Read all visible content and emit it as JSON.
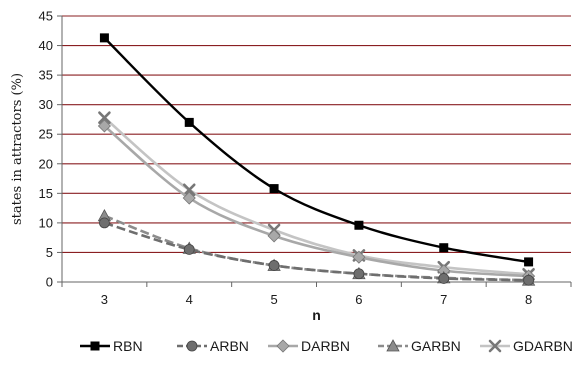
{
  "chart_data": {
    "type": "line",
    "title": "",
    "xlabel": "n",
    "ylabel": "states in attractors (%)",
    "x": [
      3,
      4,
      5,
      6,
      7,
      8
    ],
    "x_tick_labels": [
      "3",
      "4",
      "5",
      "6",
      "7",
      "8"
    ],
    "ylim": [
      0,
      45
    ],
    "y_ticks": [
      0,
      5,
      10,
      15,
      20,
      25,
      30,
      35,
      40,
      45
    ],
    "y_tick_labels": [
      "0",
      "5",
      "10",
      "15",
      "20",
      "25",
      "30",
      "35",
      "40",
      "45"
    ],
    "grid": "horizontal",
    "legend_position": "bottom",
    "series": [
      {
        "name": "RBN",
        "values": [
          41.3,
          27.0,
          15.8,
          9.6,
          5.8,
          3.4
        ],
        "color": "#000000",
        "marker": "square",
        "dash": "solid"
      },
      {
        "name": "ARBN",
        "values": [
          10.0,
          5.5,
          2.8,
          1.4,
          0.6,
          0.3
        ],
        "color": "#6e6e6e",
        "marker": "circle",
        "dash": "dashed"
      },
      {
        "name": "DARBN",
        "values": [
          26.4,
          14.2,
          7.8,
          4.2,
          1.9,
          1.0
        ],
        "color": "#a8a8a8",
        "marker": "diamond",
        "dash": "solid"
      },
      {
        "name": "GARBN",
        "values": [
          11.2,
          5.7,
          2.8,
          1.4,
          0.7,
          0.3
        ],
        "color": "#8c8c8c",
        "marker": "triangle",
        "dash": "dashed"
      },
      {
        "name": "GDARBN",
        "values": [
          27.8,
          15.6,
          8.8,
          4.5,
          2.5,
          1.3
        ],
        "color": "#c4c4c4",
        "marker": "x",
        "dash": "solid"
      }
    ]
  }
}
